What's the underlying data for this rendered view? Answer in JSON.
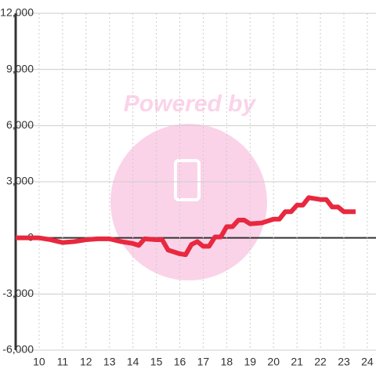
{
  "chart_data": {
    "type": "line",
    "watermark": "Powered by",
    "x": [
      9,
      10,
      10.5,
      11,
      11.5,
      12,
      12.5,
      13,
      13.5,
      14,
      14.25,
      14.5,
      15,
      15.25,
      15.5,
      16,
      16.25,
      16.5,
      16.75,
      17,
      17.25,
      17.5,
      17.75,
      18,
      18.25,
      18.5,
      18.75,
      19,
      19.5,
      20,
      20.25,
      20.5,
      20.75,
      21,
      21.25,
      21.5,
      22,
      22.25,
      22.5,
      22.75,
      23,
      23.5
    ],
    "series": [
      {
        "color": "#e8283f",
        "values": [
          0,
          0,
          -100,
          -250,
          -200,
          -100,
          -50,
          -50,
          -200,
          -300,
          -400,
          -50,
          -100,
          -100,
          -650,
          -850,
          -900,
          -350,
          -200,
          -450,
          -450,
          50,
          50,
          600,
          600,
          950,
          950,
          750,
          800,
          1000,
          1000,
          1400,
          1400,
          1750,
          1750,
          2150,
          2050,
          2050,
          1650,
          1650,
          1400,
          1400
        ]
      }
    ],
    "xlim": [
      9,
      24.37
    ],
    "xticks": [
      10,
      11,
      12,
      13,
      14,
      15,
      16,
      17,
      18,
      19,
      20,
      21,
      22,
      23,
      24
    ],
    "ylim": [
      -6000,
      12000
    ],
    "yticks": [
      {
        "value": -6000,
        "label": "-6,000"
      },
      {
        "value": -3000,
        "label": "-3,000"
      },
      0,
      {
        "value": 3000,
        "label": "3,000"
      },
      {
        "value": 6000,
        "label": "6,000"
      },
      {
        "value": 9000,
        "label": "9,000"
      },
      {
        "value": 12000,
        "label": "12,000"
      }
    ],
    "grid": true
  }
}
